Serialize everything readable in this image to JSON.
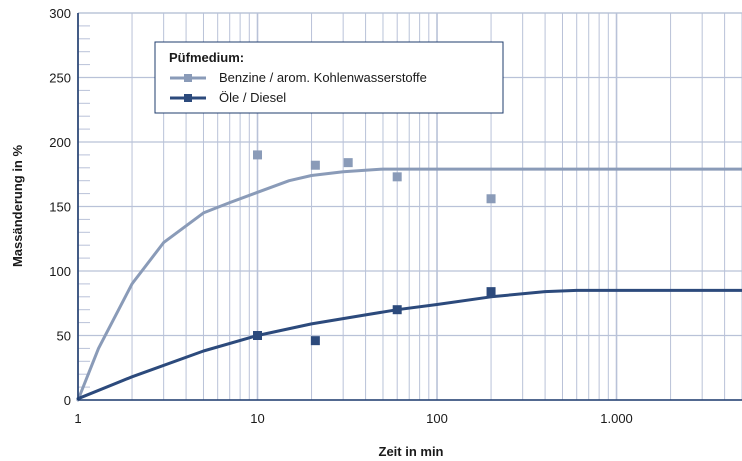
{
  "chart_data": {
    "type": "line",
    "xlabel": "Zeit in min",
    "ylabel": "Massänderung in %",
    "xscale": "log",
    "xlim": [
      1,
      5000
    ],
    "ylim": [
      0,
      300
    ],
    "x_ticks": [
      1,
      10,
      100,
      1000
    ],
    "x_tick_labels": [
      "1",
      "10",
      "100",
      "1.000"
    ],
    "y_ticks": [
      0,
      50,
      100,
      150,
      200,
      250,
      300
    ],
    "y_tick_labels": [
      "0",
      "50",
      "100",
      "150",
      "200",
      "250",
      "300"
    ],
    "grid": true,
    "legend_title": "Püfmedium:",
    "legend_position": "top-left",
    "series": [
      {
        "name": "Benzine / arom. Kohlenwasserstoffe",
        "color": "#8a9bb8",
        "curve": {
          "x": [
            1,
            1.3,
            2,
            3,
            5,
            7,
            10,
            15,
            20,
            30,
            50,
            70,
            5000
          ],
          "y": [
            0,
            40,
            90,
            122,
            145,
            153,
            161,
            170,
            174,
            177,
            179,
            179,
            179
          ]
        },
        "points": {
          "x": [
            10,
            21,
            32,
            60,
            200
          ],
          "y": [
            190,
            182,
            184,
            173,
            156
          ]
        }
      },
      {
        "name": "Öle / Diesel",
        "color": "#2c4a7c",
        "curve": {
          "x": [
            1,
            2,
            5,
            10,
            20,
            40,
            60,
            100,
            200,
            400,
            600,
            5000
          ],
          "y": [
            1,
            18,
            38,
            50,
            59,
            66,
            70,
            74,
            80,
            84,
            85,
            85
          ]
        },
        "points": {
          "x": [
            10,
            21,
            60,
            200
          ],
          "y": [
            50,
            46,
            70,
            84
          ]
        }
      }
    ]
  }
}
